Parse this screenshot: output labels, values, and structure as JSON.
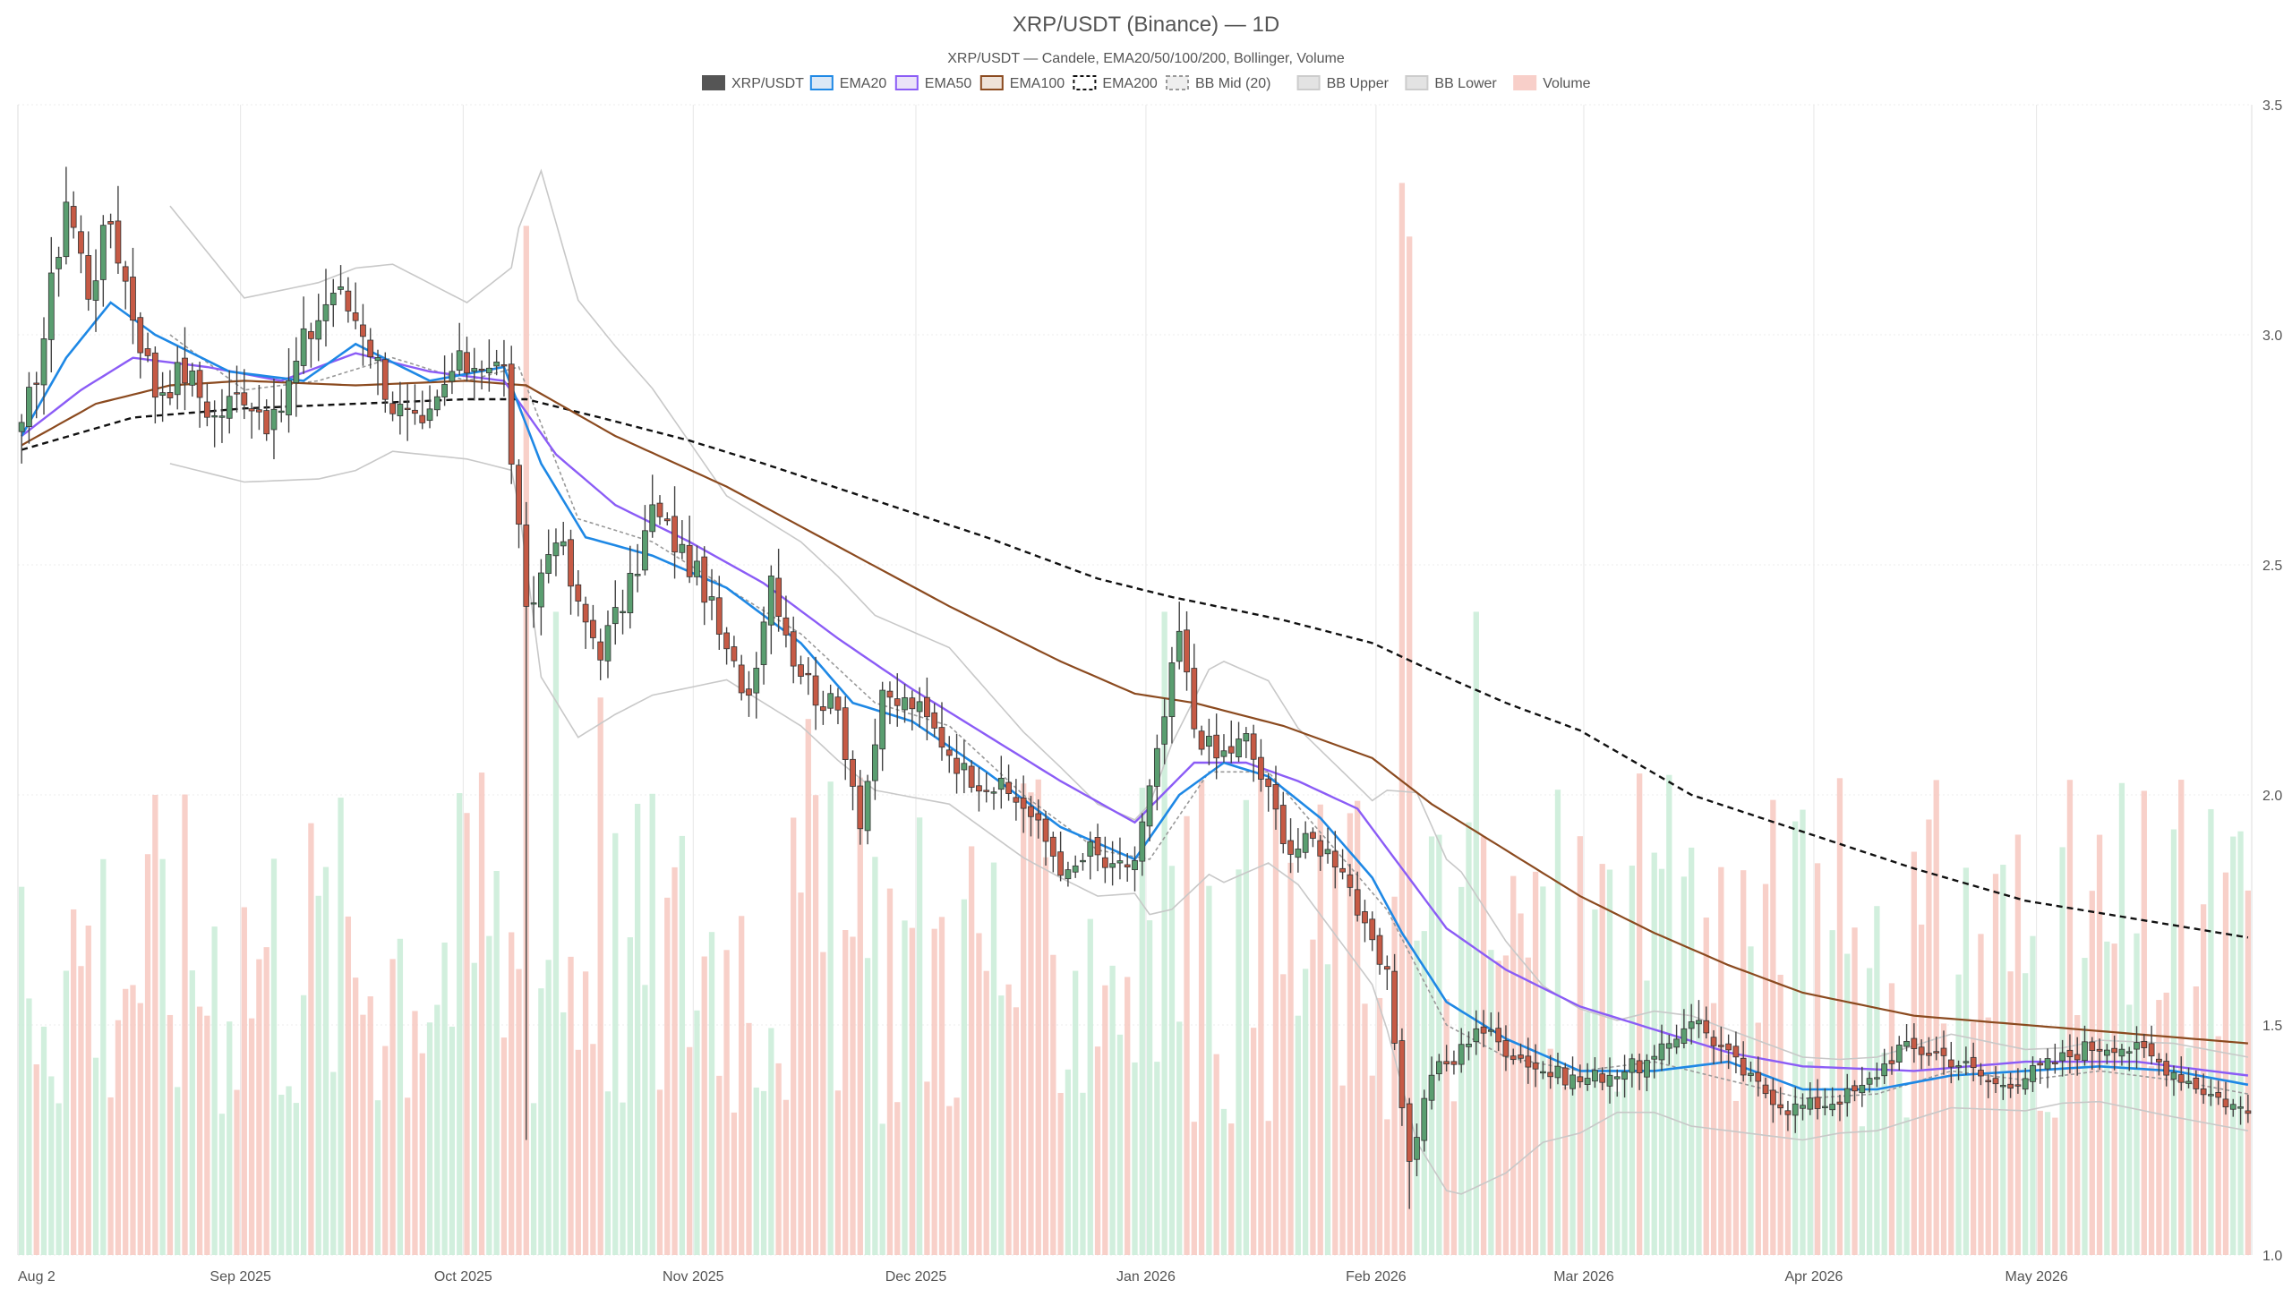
{
  "chart_data": {
    "type": "candlestick",
    "title": "XRP/USDT (Binance) — 1D",
    "subtitle": "XRP/USDT — Candele, EMA20/50/100/200, Bollinger, Volume",
    "legend": [
      {
        "label": "XRP/USDT",
        "kind": "box",
        "fill": "#555555",
        "stroke": "#555555"
      },
      {
        "label": "EMA20",
        "kind": "box",
        "fill": "#dbe8f6",
        "stroke": "#1e88e5"
      },
      {
        "label": "EMA50",
        "kind": "box",
        "fill": "#ebe3f8",
        "stroke": "#8b5cf6"
      },
      {
        "label": "EMA100",
        "kind": "box",
        "fill": "#efe2d8",
        "stroke": "#8b4a1f"
      },
      {
        "label": "EMA200",
        "kind": "dashbox",
        "fill": "#ffffff",
        "stroke": "#111111"
      },
      {
        "label": "BB Mid (20)",
        "kind": "dashbox",
        "fill": "#eeeeee",
        "stroke": "#999999"
      },
      {
        "label": "BB Upper",
        "kind": "box",
        "fill": "#e3e3e3",
        "stroke": "#cccccc"
      },
      {
        "label": "BB Lower",
        "kind": "box",
        "fill": "#e3e3e3",
        "stroke": "#cccccc"
      },
      {
        "label": "Volume",
        "kind": "box",
        "fill": "#f8cfc9",
        "stroke": "#f8cfc9"
      }
    ],
    "ylim": [
      1.0,
      3.5
    ],
    "y_ticks": [
      "1.0",
      "1.5",
      "2.0",
      "2.5",
      "3.0",
      "3.5"
    ],
    "x_ticks": [
      {
        "label": "Aug 2",
        "day": 0
      },
      {
        "label": "Sep 2025",
        "day": 30
      },
      {
        "label": "Oct 2025",
        "day": 60
      },
      {
        "label": "Nov 2025",
        "day": 91
      },
      {
        "label": "Dec 2025",
        "day": 121
      },
      {
        "label": "Jan 2026",
        "day": 152
      },
      {
        "label": "Feb 2026",
        "day": 183
      },
      {
        "label": "Mar 2026",
        "day": 211
      },
      {
        "label": "Apr 2026",
        "day": 242
      },
      {
        "label": "May 2026",
        "day": 272
      }
    ],
    "days": 301,
    "close_anchors": [
      [
        0,
        2.78
      ],
      [
        3,
        3.0
      ],
      [
        6,
        3.3
      ],
      [
        9,
        3.1
      ],
      [
        12,
        3.25
      ],
      [
        15,
        3.05
      ],
      [
        18,
        2.88
      ],
      [
        22,
        2.92
      ],
      [
        26,
        2.82
      ],
      [
        30,
        2.88
      ],
      [
        34,
        2.8
      ],
      [
        38,
        2.98
      ],
      [
        42,
        3.1
      ],
      [
        46,
        3.02
      ],
      [
        50,
        2.85
      ],
      [
        54,
        2.78
      ],
      [
        58,
        2.92
      ],
      [
        62,
        2.95
      ],
      [
        65,
        2.92
      ],
      [
        68,
        2.38
      ],
      [
        72,
        2.58
      ],
      [
        75,
        2.4
      ],
      [
        78,
        2.32
      ],
      [
        82,
        2.45
      ],
      [
        85,
        2.62
      ],
      [
        88,
        2.55
      ],
      [
        92,
        2.45
      ],
      [
        95,
        2.3
      ],
      [
        98,
        2.22
      ],
      [
        101,
        2.48
      ],
      [
        104,
        2.3
      ],
      [
        107,
        2.22
      ],
      [
        110,
        2.18
      ],
      [
        113,
        1.95
      ],
      [
        116,
        2.2
      ],
      [
        120,
        2.2
      ],
      [
        124,
        2.12
      ],
      [
        127,
        2.05
      ],
      [
        131,
        2.02
      ],
      [
        135,
        1.98
      ],
      [
        138,
        1.9
      ],
      [
        141,
        1.82
      ],
      [
        144,
        1.88
      ],
      [
        147,
        1.83
      ],
      [
        150,
        1.86
      ],
      [
        153,
        2.08
      ],
      [
        156,
        2.35
      ],
      [
        158,
        2.15
      ],
      [
        161,
        2.08
      ],
      [
        165,
        2.12
      ],
      [
        168,
        2.0
      ],
      [
        171,
        1.88
      ],
      [
        174,
        1.9
      ],
      [
        178,
        1.85
      ],
      [
        181,
        1.7
      ],
      [
        184,
        1.6
      ],
      [
        187,
        1.2
      ],
      [
        190,
        1.4
      ],
      [
        193,
        1.42
      ],
      [
        196,
        1.5
      ],
      [
        200,
        1.45
      ],
      [
        205,
        1.4
      ],
      [
        210,
        1.38
      ],
      [
        215,
        1.4
      ],
      [
        220,
        1.42
      ],
      [
        225,
        1.52
      ],
      [
        229,
        1.45
      ],
      [
        233,
        1.38
      ],
      [
        238,
        1.32
      ],
      [
        243,
        1.33
      ],
      [
        248,
        1.36
      ],
      [
        253,
        1.45
      ],
      [
        258,
        1.44
      ],
      [
        262,
        1.41
      ],
      [
        266,
        1.37
      ],
      [
        270,
        1.39
      ],
      [
        274,
        1.42
      ],
      [
        278,
        1.45
      ],
      [
        282,
        1.46
      ],
      [
        286,
        1.44
      ],
      [
        291,
        1.39
      ],
      [
        295,
        1.35
      ],
      [
        300,
        1.31
      ]
    ],
    "ema200_anchors": [
      [
        0,
        2.75
      ],
      [
        15,
        2.82
      ],
      [
        30,
        2.84
      ],
      [
        45,
        2.85
      ],
      [
        60,
        2.86
      ],
      [
        68,
        2.86
      ],
      [
        78,
        2.82
      ],
      [
        90,
        2.77
      ],
      [
        100,
        2.72
      ],
      [
        115,
        2.64
      ],
      [
        130,
        2.56
      ],
      [
        145,
        2.47
      ],
      [
        155,
        2.43
      ],
      [
        170,
        2.38
      ],
      [
        182,
        2.33
      ],
      [
        190,
        2.27
      ],
      [
        200,
        2.2
      ],
      [
        210,
        2.14
      ],
      [
        225,
        2.0
      ],
      [
        240,
        1.92
      ],
      [
        255,
        1.84
      ],
      [
        270,
        1.77
      ],
      [
        285,
        1.73
      ],
      [
        300,
        1.69
      ]
    ],
    "ema100_anchors": [
      [
        0,
        2.76
      ],
      [
        10,
        2.85
      ],
      [
        20,
        2.89
      ],
      [
        30,
        2.9
      ],
      [
        45,
        2.89
      ],
      [
        60,
        2.9
      ],
      [
        68,
        2.89
      ],
      [
        80,
        2.78
      ],
      [
        95,
        2.67
      ],
      [
        110,
        2.54
      ],
      [
        125,
        2.41
      ],
      [
        140,
        2.29
      ],
      [
        150,
        2.22
      ],
      [
        158,
        2.2
      ],
      [
        170,
        2.15
      ],
      [
        182,
        2.08
      ],
      [
        190,
        1.98
      ],
      [
        200,
        1.88
      ],
      [
        210,
        1.78
      ],
      [
        220,
        1.7
      ],
      [
        230,
        1.63
      ],
      [
        240,
        1.57
      ],
      [
        255,
        1.52
      ],
      [
        270,
        1.5
      ],
      [
        285,
        1.48
      ],
      [
        300,
        1.46
      ]
    ],
    "ema50_anchors": [
      [
        0,
        2.78
      ],
      [
        8,
        2.88
      ],
      [
        15,
        2.95
      ],
      [
        25,
        2.93
      ],
      [
        35,
        2.9
      ],
      [
        45,
        2.96
      ],
      [
        55,
        2.92
      ],
      [
        65,
        2.9
      ],
      [
        72,
        2.74
      ],
      [
        80,
        2.63
      ],
      [
        90,
        2.55
      ],
      [
        100,
        2.46
      ],
      [
        110,
        2.34
      ],
      [
        120,
        2.23
      ],
      [
        130,
        2.13
      ],
      [
        140,
        2.03
      ],
      [
        150,
        1.94
      ],
      [
        158,
        2.07
      ],
      [
        165,
        2.07
      ],
      [
        172,
        2.03
      ],
      [
        180,
        1.97
      ],
      [
        186,
        1.84
      ],
      [
        192,
        1.71
      ],
      [
        200,
        1.62
      ],
      [
        210,
        1.54
      ],
      [
        220,
        1.49
      ],
      [
        230,
        1.44
      ],
      [
        240,
        1.41
      ],
      [
        255,
        1.4
      ],
      [
        270,
        1.42
      ],
      [
        285,
        1.42
      ],
      [
        300,
        1.39
      ]
    ],
    "ema20_anchors": [
      [
        0,
        2.78
      ],
      [
        6,
        2.95
      ],
      [
        12,
        3.07
      ],
      [
        18,
        3.0
      ],
      [
        28,
        2.92
      ],
      [
        38,
        2.9
      ],
      [
        45,
        2.98
      ],
      [
        55,
        2.9
      ],
      [
        65,
        2.93
      ],
      [
        70,
        2.72
      ],
      [
        76,
        2.56
      ],
      [
        85,
        2.52
      ],
      [
        95,
        2.45
      ],
      [
        105,
        2.33
      ],
      [
        112,
        2.2
      ],
      [
        120,
        2.16
      ],
      [
        130,
        2.05
      ],
      [
        140,
        1.93
      ],
      [
        150,
        1.86
      ],
      [
        156,
        2.0
      ],
      [
        162,
        2.07
      ],
      [
        168,
        2.04
      ],
      [
        175,
        1.95
      ],
      [
        182,
        1.82
      ],
      [
        186,
        1.7
      ],
      [
        192,
        1.55
      ],
      [
        200,
        1.47
      ],
      [
        210,
        1.4
      ],
      [
        220,
        1.4
      ],
      [
        230,
        1.42
      ],
      [
        240,
        1.36
      ],
      [
        250,
        1.36
      ],
      [
        260,
        1.39
      ],
      [
        270,
        1.4
      ],
      [
        280,
        1.41
      ],
      [
        290,
        1.4
      ],
      [
        300,
        1.37
      ]
    ],
    "bb_mid_anchors": [
      [
        0,
        2.78
      ],
      [
        10,
        3.0
      ],
      [
        20,
        3.0
      ],
      [
        30,
        2.88
      ],
      [
        40,
        2.9
      ],
      [
        50,
        2.95
      ],
      [
        60,
        2.9
      ],
      [
        67,
        2.93
      ],
      [
        75,
        2.6
      ],
      [
        85,
        2.55
      ],
      [
        95,
        2.45
      ],
      [
        105,
        2.35
      ],
      [
        115,
        2.2
      ],
      [
        125,
        2.15
      ],
      [
        135,
        2.0
      ],
      [
        145,
        1.88
      ],
      [
        152,
        1.86
      ],
      [
        160,
        2.05
      ],
      [
        168,
        2.05
      ],
      [
        176,
        1.9
      ],
      [
        184,
        1.75
      ],
      [
        192,
        1.5
      ],
      [
        200,
        1.43
      ],
      [
        210,
        1.4
      ],
      [
        220,
        1.42
      ],
      [
        230,
        1.38
      ],
      [
        240,
        1.34
      ],
      [
        250,
        1.35
      ],
      [
        260,
        1.4
      ],
      [
        270,
        1.38
      ],
      [
        280,
        1.4
      ],
      [
        290,
        1.38
      ],
      [
        300,
        1.35
      ]
    ],
    "bb_width_anchors": [
      [
        20,
        0.28
      ],
      [
        30,
        0.2
      ],
      [
        45,
        0.22
      ],
      [
        60,
        0.17
      ],
      [
        66,
        0.22
      ],
      [
        70,
        0.55
      ],
      [
        80,
        0.4
      ],
      [
        95,
        0.2
      ],
      [
        110,
        0.2
      ],
      [
        125,
        0.17
      ],
      [
        140,
        0.12
      ],
      [
        150,
        0.08
      ],
      [
        155,
        0.18
      ],
      [
        162,
        0.24
      ],
      [
        172,
        0.17
      ],
      [
        182,
        0.2
      ],
      [
        188,
        0.38
      ],
      [
        194,
        0.35
      ],
      [
        205,
        0.17
      ],
      [
        215,
        0.1
      ],
      [
        225,
        0.12
      ],
      [
        235,
        0.1
      ],
      [
        245,
        0.08
      ],
      [
        260,
        0.08
      ],
      [
        275,
        0.06
      ],
      [
        290,
        0.08
      ],
      [
        300,
        0.08
      ]
    ],
    "volume_max_label_free": true,
    "volume_spikes": [
      [
        62,
        0.45
      ],
      [
        68,
        0.96
      ],
      [
        72,
        0.6
      ],
      [
        78,
        0.52
      ],
      [
        106,
        0.5
      ],
      [
        154,
        0.6
      ],
      [
        186,
        1.0
      ],
      [
        187,
        0.95
      ],
      [
        196,
        0.6
      ],
      [
        225,
        0.38
      ],
      [
        285,
        0.3
      ]
    ]
  }
}
